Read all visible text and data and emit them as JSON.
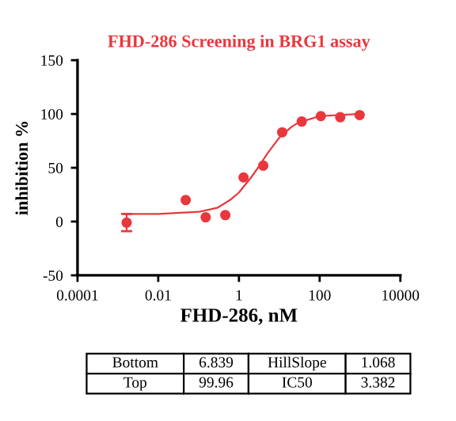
{
  "chart_data": {
    "type": "scatter",
    "title": "FHD-286 Screening in BRG1 assay",
    "xlabel": "FHD-286, nM",
    "ylabel": "inhibition %",
    "log": "x",
    "xlim": [
      0.0001,
      10000
    ],
    "xticks": [
      0.0001,
      0.01,
      1,
      100,
      10000
    ],
    "ylim": [
      -50,
      150
    ],
    "yticks": [
      -50,
      0,
      50,
      100,
      150
    ],
    "grid": false,
    "series": [
      {
        "marker": "circle",
        "color": "#e8383d",
        "x": [
          0.00165,
          0.048,
          0.15,
          0.46,
          1.3,
          4.0,
          11.8,
          36,
          107,
          324,
          980
        ],
        "values": [
          -1,
          20,
          4,
          6,
          41,
          52,
          83,
          93,
          98,
          97,
          99
        ],
        "errors": [
          8,
          null,
          null,
          null,
          null,
          null,
          null,
          null,
          null,
          null,
          null
        ]
      },
      {
        "type": "line",
        "marker": "none",
        "color": "#e8383d",
        "line_style": "solid",
        "x": [
          0.0016,
          0.01,
          0.1,
          0.3,
          0.6,
          1,
          2,
          3.382,
          5,
          10,
          20,
          30,
          100,
          1000
        ],
        "values": [
          7,
          7,
          9,
          13,
          20,
          27,
          41,
          53,
          63,
          78,
          88,
          92,
          98,
          100
        ]
      }
    ],
    "annotations": [
      "Bottom",
      "6.839",
      "HillSlope",
      "1.068",
      "Top",
      "99.96",
      "IC50",
      "3.382"
    ]
  }
}
